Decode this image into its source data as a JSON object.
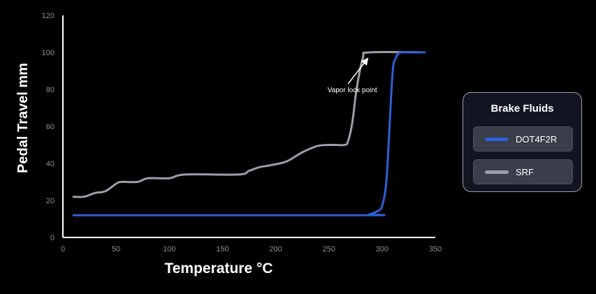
{
  "chart_data": {
    "type": "line",
    "xlabel": "Temperature °C",
    "ylabel": "Pedal Travel mm",
    "xlim": [
      0,
      350
    ],
    "ylim": [
      0,
      120
    ],
    "x_ticks": [
      0,
      50,
      100,
      150,
      200,
      250,
      300,
      350
    ],
    "y_ticks": [
      0,
      20,
      40,
      60,
      80,
      100,
      120
    ],
    "grid": false,
    "legend_position": "right",
    "series": [
      {
        "name": "SRF",
        "color": "#9a9ea8",
        "points": [
          [
            10,
            22
          ],
          [
            20,
            22
          ],
          [
            30,
            24
          ],
          [
            40,
            25
          ],
          [
            50,
            29
          ],
          [
            55,
            30
          ],
          [
            70,
            30
          ],
          [
            80,
            32
          ],
          [
            100,
            32
          ],
          [
            115,
            34
          ],
          [
            165,
            34
          ],
          [
            175,
            36
          ],
          [
            185,
            38
          ],
          [
            195,
            39
          ],
          [
            210,
            41
          ],
          [
            225,
            46
          ],
          [
            240,
            49.5
          ],
          [
            255,
            50
          ],
          [
            265,
            50
          ],
          [
            268,
            52
          ],
          [
            272,
            62
          ],
          [
            276,
            80
          ],
          [
            282,
            97
          ],
          [
            288,
            100
          ],
          [
            340,
            100
          ]
        ]
      },
      {
        "name": "DOT4F2R",
        "color": "#2f5fd6",
        "points": [
          [
            10,
            12
          ],
          [
            280,
            12
          ],
          [
            288,
            12.5
          ],
          [
            295,
            14
          ],
          [
            300,
            17
          ],
          [
            304,
            30
          ],
          [
            307,
            60
          ],
          [
            310,
            90
          ],
          [
            313,
            97
          ],
          [
            318,
            100
          ],
          [
            340,
            100
          ]
        ]
      }
    ],
    "annotations": [
      {
        "text": "Vapor lock point",
        "x": 272,
        "y": 80,
        "arrow_to": [
          288,
          98
        ]
      }
    ]
  },
  "legend": {
    "title": "Brake Fluids",
    "items": [
      {
        "label": "DOT4F2R",
        "color": "#2f5fd6"
      },
      {
        "label": "SRF",
        "color": "#9a9ea8"
      }
    ]
  }
}
